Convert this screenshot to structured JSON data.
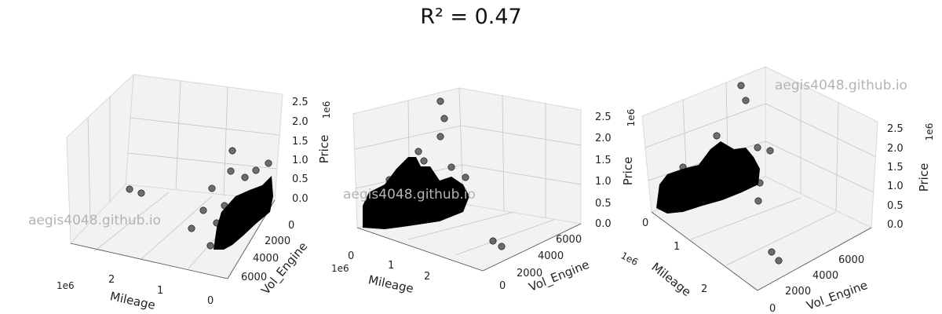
{
  "figure": {
    "title": "R² = 0.47",
    "watermarks": [
      "aegis4048.github.io",
      "aegis4048.github.io",
      "aegis4048.github.io"
    ]
  },
  "chart_data": [
    {
      "type": "scatter",
      "title": "",
      "xlabel": "Mileage",
      "ylabel": "Vol_Engine",
      "zlabel": "Price",
      "x_offset_label": "1e6",
      "z_offset_label": "1e6",
      "x_ticks": [
        "2",
        "1",
        "0"
      ],
      "y_ticks": [
        "0",
        "2000",
        "4000",
        "6000"
      ],
      "z_ticks": [
        "0.0",
        "0.5",
        "1.0",
        "1.5",
        "2.0",
        "2.5"
      ],
      "color": "#000000",
      "notes": "3D scatter of Price vs Mileage and Vol_Engine; dense cluster near low mileage"
    },
    {
      "type": "scatter",
      "title": "",
      "xlabel": "Mileage",
      "ylabel": "Vol_Engine",
      "zlabel": "Price",
      "x_offset_label": "1e6",
      "z_offset_label": "1e6",
      "x_ticks": [
        "0",
        "1",
        "2"
      ],
      "y_ticks": [
        "0",
        "2000",
        "4000",
        "6000"
      ],
      "z_ticks": [
        "0.0",
        "0.5",
        "1.0",
        "1.5",
        "2.0",
        "2.5"
      ],
      "color": "#000000"
    },
    {
      "type": "scatter",
      "title": "",
      "xlabel": "Mileage",
      "ylabel": "Vol_Engine",
      "zlabel": "Price",
      "x_offset_label": "1e6",
      "z_offset_label": "1e6",
      "x_ticks": [
        "0",
        "1",
        "2"
      ],
      "y_ticks": [
        "0",
        "2000",
        "4000",
        "6000"
      ],
      "z_ticks": [
        "0.0",
        "0.5",
        "1.0",
        "1.5",
        "2.0",
        "2.5"
      ],
      "color": "#000000"
    }
  ]
}
